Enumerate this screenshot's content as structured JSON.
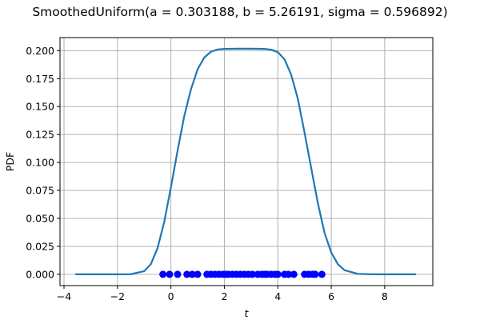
{
  "chart_data": {
    "type": "line",
    "title": "SmoothedUniform(a = 0.303188, b = 5.26191, sigma = 0.596892)",
    "xlabel": "t",
    "ylabel": "PDF",
    "xlim": [
      -4.15,
      9.8
    ],
    "ylim": [
      -0.0101,
      0.2117
    ],
    "xticks": [
      -4,
      -2,
      0,
      2,
      4,
      6,
      8
    ],
    "xtick_labels": [
      "−4",
      "−2",
      "0",
      "2",
      "4",
      "6",
      "8"
    ],
    "yticks": [
      0.0,
      0.025,
      0.05,
      0.075,
      0.1,
      0.125,
      0.15,
      0.175,
      0.2
    ],
    "ytick_labels": [
      "0.000",
      "0.025",
      "0.050",
      "0.075",
      "0.100",
      "0.125",
      "0.150",
      "0.175",
      "0.200"
    ],
    "grid": true,
    "series": [
      {
        "kind": "line",
        "color": "#1f77b4",
        "x": [
          -3.55,
          -3.0,
          -2.5,
          -2.0,
          -1.5,
          -1.0,
          -0.75,
          -0.5,
          -0.25,
          0.0,
          0.25,
          0.5,
          0.75,
          1.0,
          1.25,
          1.5,
          1.75,
          2.0,
          2.5,
          3.0,
          3.5,
          3.75,
          4.0,
          4.25,
          4.5,
          4.75,
          5.0,
          5.25,
          5.5,
          5.75,
          6.0,
          6.25,
          6.5,
          7.0,
          7.5,
          8.0,
          8.5,
          9.15
        ],
        "y": [
          0.0,
          0.0,
          0.0,
          0.0,
          0.0001,
          0.0028,
          0.0091,
          0.0235,
          0.0468,
          0.0778,
          0.1106,
          0.1415,
          0.1654,
          0.1834,
          0.1939,
          0.1991,
          0.2011,
          0.2016,
          0.2018,
          0.2018,
          0.2016,
          0.2009,
          0.1987,
          0.1924,
          0.1786,
          0.157,
          0.1268,
          0.095,
          0.0635,
          0.037,
          0.0195,
          0.009,
          0.0036,
          0.0004,
          0.0,
          0.0,
          0.0,
          0.0
        ]
      },
      {
        "kind": "scatter",
        "color": "#0000ff",
        "x": [
          -0.3,
          -0.05,
          0.25,
          0.6,
          0.8,
          1.0,
          1.35,
          1.5,
          1.65,
          1.8,
          1.95,
          2.05,
          2.15,
          2.3,
          2.45,
          2.6,
          2.75,
          2.9,
          3.05,
          3.25,
          3.4,
          3.5,
          3.6,
          3.75,
          3.9,
          4.0,
          4.25,
          4.4,
          4.6,
          5.0,
          5.15,
          5.3,
          5.4,
          5.65
        ],
        "y": [
          0,
          0,
          0,
          0,
          0,
          0,
          0,
          0,
          0,
          0,
          0,
          0,
          0,
          0,
          0,
          0,
          0,
          0,
          0,
          0,
          0,
          0,
          0,
          0,
          0,
          0,
          0,
          0,
          0,
          0,
          0,
          0,
          0,
          0
        ]
      }
    ]
  }
}
